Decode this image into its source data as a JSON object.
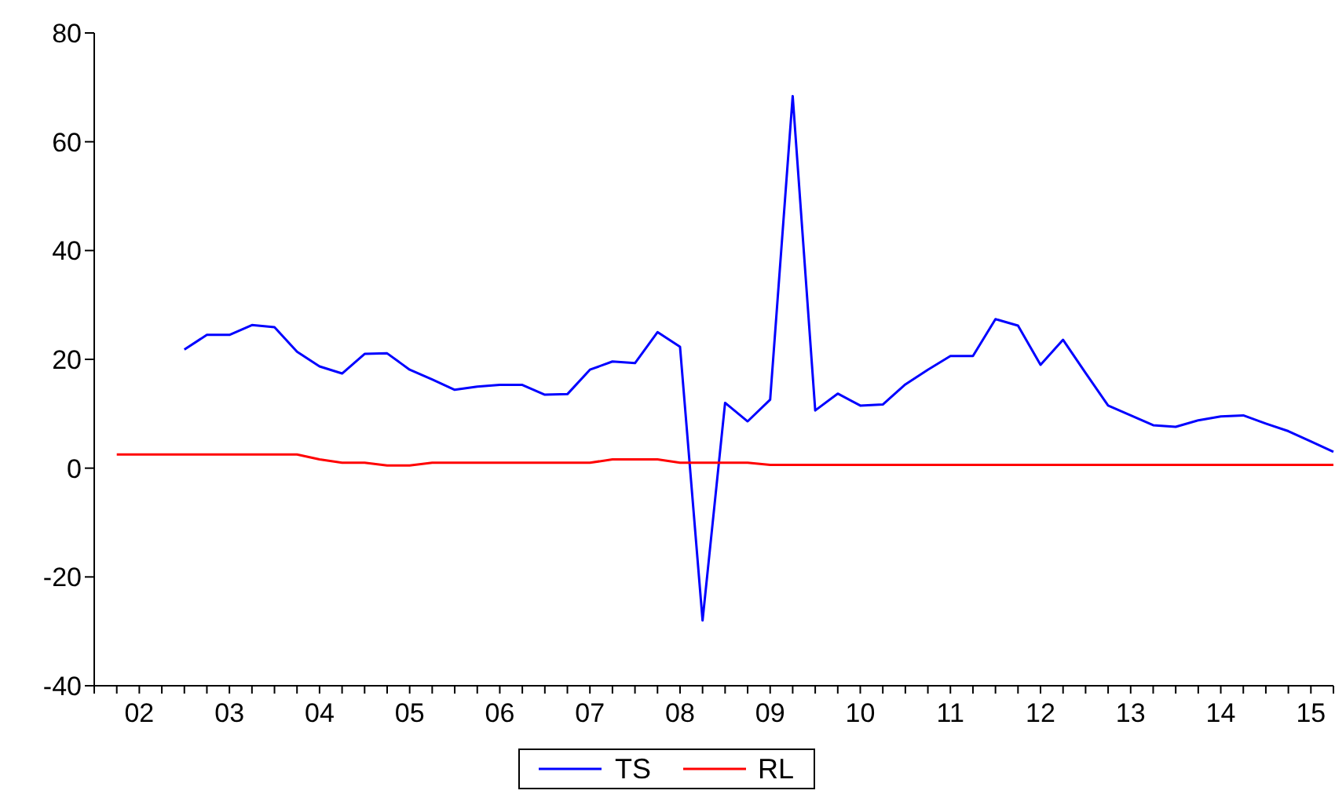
{
  "chart_data": {
    "type": "line",
    "categories": [
      null,
      null,
      "02",
      null,
      null,
      null,
      "03",
      null,
      null,
      null,
      "04",
      null,
      null,
      null,
      "05",
      null,
      null,
      null,
      "06",
      null,
      null,
      null,
      "07",
      null,
      null,
      null,
      "08",
      null,
      null,
      null,
      "09",
      null,
      null,
      null,
      "10",
      null,
      null,
      null,
      "11",
      null,
      null,
      null,
      "12",
      null,
      null,
      null,
      "13",
      null,
      null,
      null,
      "14",
      null,
      null,
      null,
      "15",
      null
    ],
    "ylim": [
      -40,
      80
    ],
    "yticks": [
      -40,
      -20,
      0,
      20,
      40,
      60,
      80
    ],
    "legend": "bottom",
    "line_style": "solid",
    "series": [
      {
        "name": "TS",
        "color": "#0000ff",
        "values": [
          null,
          null,
          null,
          null,
          21.8,
          24.5,
          24.5,
          26.3,
          25.9,
          21.4,
          18.7,
          17.4,
          21.0,
          21.1,
          18.1,
          16.3,
          14.4,
          15.0,
          15.3,
          15.3,
          13.5,
          13.6,
          18.1,
          19.6,
          19.3,
          25.0,
          22.3,
          -28,
          12.0,
          8.6,
          12.6,
          68.4,
          10.6,
          13.7,
          11.5,
          11.7,
          15.4,
          18.1,
          20.6,
          20.6,
          27.4,
          26.2,
          19.0,
          23.6,
          17.5,
          11.5,
          9.7,
          7.9,
          7.6,
          8.8,
          9.5,
          9.7,
          8.2,
          6.8,
          4.9,
          3.0
        ]
      },
      {
        "name": "RL",
        "color": "#ff0000",
        "values": [
          null,
          2.5,
          2.5,
          2.5,
          2.5,
          2.5,
          2.5,
          2.5,
          2.5,
          2.5,
          1.6,
          1.0,
          1.0,
          0.5,
          0.5,
          1.0,
          1.0,
          1.0,
          1.0,
          1.0,
          1.0,
          1.0,
          1.0,
          1.6,
          1.6,
          1.6,
          1.0,
          1.0,
          1.0,
          1.0,
          0.6,
          0.6,
          0.6,
          0.6,
          0.6,
          0.6,
          0.6,
          0.6,
          0.6,
          0.6,
          0.6,
          0.6,
          0.6,
          0.6,
          0.6,
          0.6,
          0.6,
          0.6,
          0.6,
          0.6,
          0.6,
          0.6,
          0.6,
          0.6,
          0.6,
          0.6
        ]
      }
    ]
  }
}
